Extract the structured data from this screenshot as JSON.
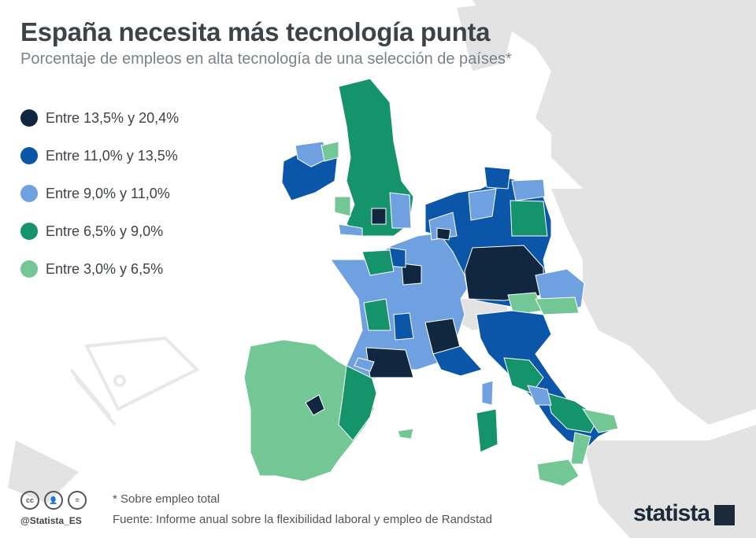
{
  "title": "España necesita más tecnología punta",
  "subtitle": "Porcentaje de empleos en alta tecnología de una selección de países*",
  "legend": [
    {
      "label": "Entre 13,5% y 20,4%",
      "color": "#112740"
    },
    {
      "label": "Entre 11,0% y 13,5%",
      "color": "#0b56a8"
    },
    {
      "label": "Entre 9,0% y 11,0%",
      "color": "#6fa0e0"
    },
    {
      "label": "Entre 6,5% y 9,0%",
      "color": "#15936b"
    },
    {
      "label": "Entre 3,0% y 6,5%",
      "color": "#72c794"
    }
  ],
  "colors": {
    "background_land": "#e3e3e3",
    "sea": "#ffffff",
    "border": "#ffffff"
  },
  "footer": {
    "note": "* Sobre empleo total",
    "source": "Fuente: Informe anual sobre la flexibilidad laboral y empleo de Randstad",
    "handle": "@Statista_ES",
    "brand": "statista",
    "cc_icons": [
      "cc-icon",
      "by-icon",
      "nd-icon"
    ]
  },
  "decorative_icon": "microchip-icon"
}
